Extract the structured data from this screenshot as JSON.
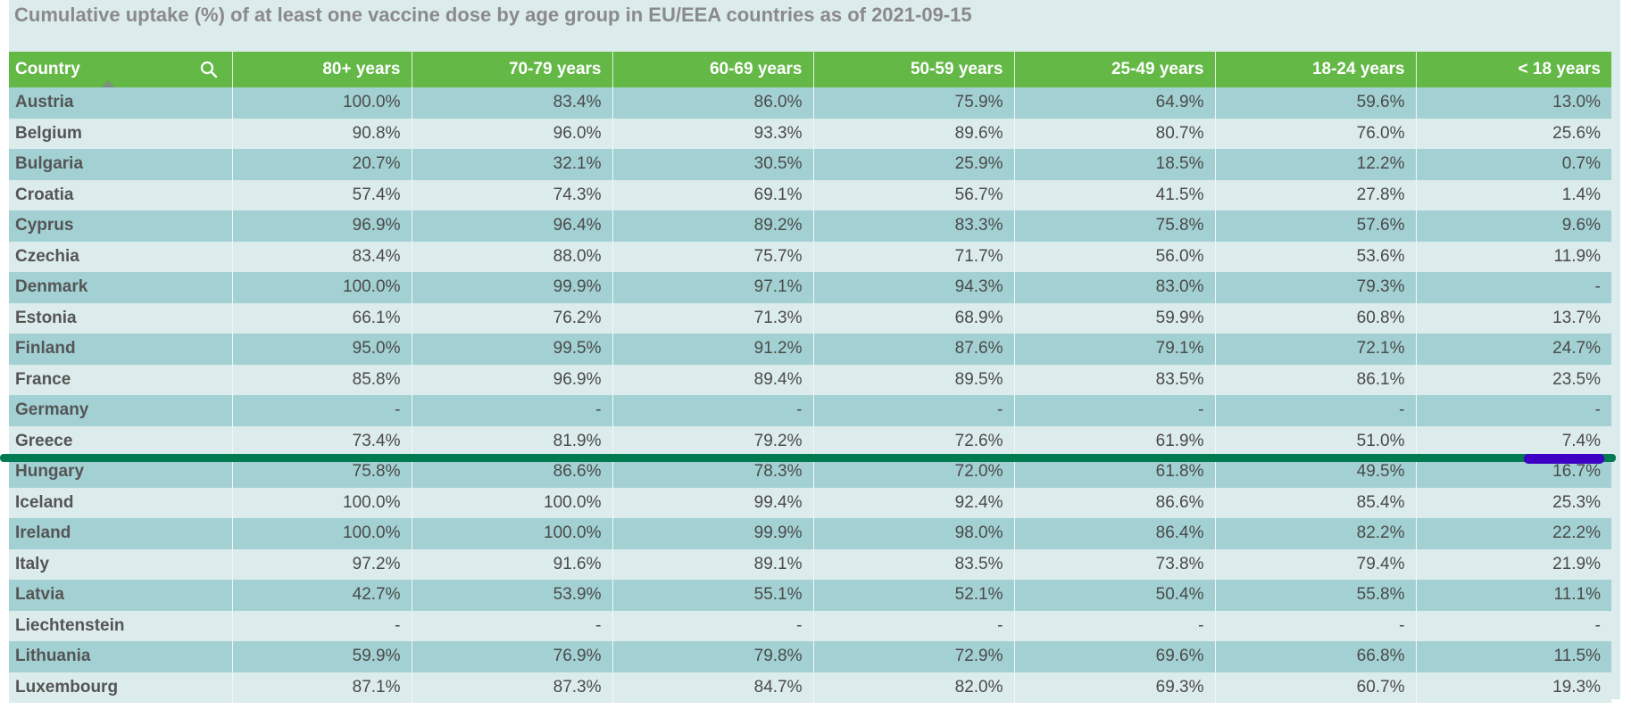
{
  "title": "Cumulative uptake (%) of at least one vaccine dose by age group in EU/EEA countries as of 2021-09-15",
  "colors": {
    "header_bg": "#63b846",
    "row_odd": "#a3d1d3",
    "row_even": "#dcebeb",
    "annotation_line": "#027a52",
    "annotation_mark": "#3f00c6"
  },
  "icons": {
    "search": "search-icon",
    "sort": "sort-ascending-icon"
  },
  "chart_data": {
    "type": "table",
    "title": "Cumulative uptake (%) of at least one vaccine dose by age group in EU/EEA countries as of 2021-09-15",
    "columns": [
      "Country",
      "80+ years",
      "70-79 years",
      "60-69 years",
      "50-59 years",
      "25-49 years",
      "18-24 years",
      "< 18 years"
    ],
    "rows": [
      {
        "country": "Austria",
        "values": [
          "100.0%",
          "83.4%",
          "86.0%",
          "75.9%",
          "64.9%",
          "59.6%",
          "13.0%"
        ]
      },
      {
        "country": "Belgium",
        "values": [
          "90.8%",
          "96.0%",
          "93.3%",
          "89.6%",
          "80.7%",
          "76.0%",
          "25.6%"
        ]
      },
      {
        "country": "Bulgaria",
        "values": [
          "20.7%",
          "32.1%",
          "30.5%",
          "25.9%",
          "18.5%",
          "12.2%",
          "0.7%"
        ]
      },
      {
        "country": "Croatia",
        "values": [
          "57.4%",
          "74.3%",
          "69.1%",
          "56.7%",
          "41.5%",
          "27.8%",
          "1.4%"
        ]
      },
      {
        "country": "Cyprus",
        "values": [
          "96.9%",
          "96.4%",
          "89.2%",
          "83.3%",
          "75.8%",
          "57.6%",
          "9.6%"
        ]
      },
      {
        "country": "Czechia",
        "values": [
          "83.4%",
          "88.0%",
          "75.7%",
          "71.7%",
          "56.0%",
          "53.6%",
          "11.9%"
        ]
      },
      {
        "country": "Denmark",
        "values": [
          "100.0%",
          "99.9%",
          "97.1%",
          "94.3%",
          "83.0%",
          "79.3%",
          "-"
        ]
      },
      {
        "country": "Estonia",
        "values": [
          "66.1%",
          "76.2%",
          "71.3%",
          "68.9%",
          "59.9%",
          "60.8%",
          "13.7%"
        ]
      },
      {
        "country": "Finland",
        "values": [
          "95.0%",
          "99.5%",
          "91.2%",
          "87.6%",
          "79.1%",
          "72.1%",
          "24.7%"
        ]
      },
      {
        "country": "France",
        "values": [
          "85.8%",
          "96.9%",
          "89.4%",
          "89.5%",
          "83.5%",
          "86.1%",
          "23.5%"
        ]
      },
      {
        "country": "Germany",
        "values": [
          "-",
          "-",
          "-",
          "-",
          "-",
          "-",
          "-"
        ]
      },
      {
        "country": "Greece",
        "values": [
          "73.4%",
          "81.9%",
          "79.2%",
          "72.6%",
          "61.9%",
          "51.0%",
          "7.4%"
        ]
      },
      {
        "country": "Hungary",
        "values": [
          "75.8%",
          "86.6%",
          "78.3%",
          "72.0%",
          "61.8%",
          "49.5%",
          "16.7%"
        ]
      },
      {
        "country": "Iceland",
        "values": [
          "100.0%",
          "100.0%",
          "99.4%",
          "92.4%",
          "86.6%",
          "85.4%",
          "25.3%"
        ]
      },
      {
        "country": "Ireland",
        "values": [
          "100.0%",
          "100.0%",
          "99.9%",
          "98.0%",
          "86.4%",
          "82.2%",
          "22.2%"
        ]
      },
      {
        "country": "Italy",
        "values": [
          "97.2%",
          "91.6%",
          "89.1%",
          "83.5%",
          "73.8%",
          "79.4%",
          "21.9%"
        ]
      },
      {
        "country": "Latvia",
        "values": [
          "42.7%",
          "53.9%",
          "55.1%",
          "52.1%",
          "50.4%",
          "55.8%",
          "11.1%"
        ]
      },
      {
        "country": "Liechtenstein",
        "values": [
          "-",
          "-",
          "-",
          "-",
          "-",
          "-",
          "-"
        ]
      },
      {
        "country": "Lithuania",
        "values": [
          "59.9%",
          "76.9%",
          "79.8%",
          "72.9%",
          "69.6%",
          "66.8%",
          "11.5%"
        ]
      },
      {
        "country": "Luxembourg",
        "values": [
          "87.1%",
          "87.3%",
          "84.7%",
          "82.0%",
          "69.3%",
          "60.7%",
          "19.3%"
        ]
      }
    ]
  }
}
